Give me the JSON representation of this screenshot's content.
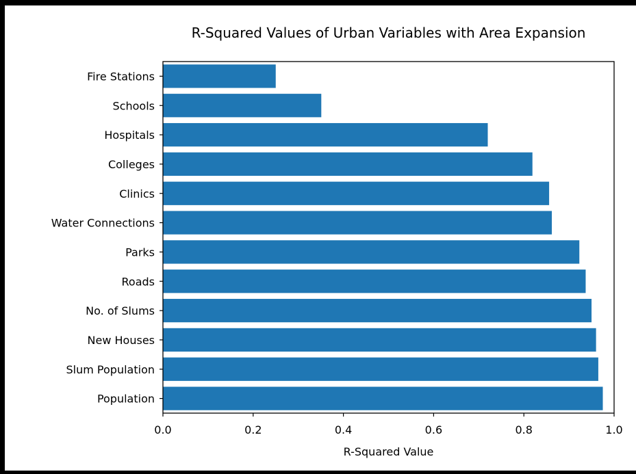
{
  "chart_data": {
    "type": "bar",
    "orientation": "horizontal",
    "title": "R-Squared Values of Urban Variables with Area Expansion",
    "xlabel": "R-Squared Value",
    "ylabel": "",
    "xlim": [
      0.0,
      1.0
    ],
    "xticks": [
      "0.0",
      "0.2",
      "0.4",
      "0.6",
      "0.8",
      "1.0"
    ],
    "categories": [
      "Population",
      "Slum Population",
      "New Houses",
      "No. of Slums",
      "Roads",
      "Parks",
      "Water Connections",
      "Clinics",
      "Colleges",
      "Hospitals",
      "Schools",
      "Fire Stations"
    ],
    "values": [
      0.975,
      0.965,
      0.96,
      0.95,
      0.937,
      0.923,
      0.862,
      0.856,
      0.819,
      0.72,
      0.351,
      0.25
    ],
    "bar_color": "#1f77b4",
    "grid": false,
    "legend": "none"
  }
}
